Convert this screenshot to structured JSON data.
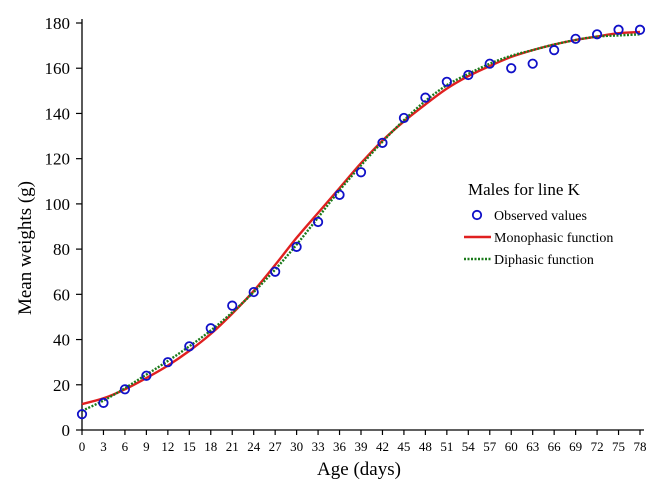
{
  "chart_data": {
    "type": "scatter",
    "xlabel": "Age (days)",
    "ylabel": "Mean weights (g)",
    "xlim": [
      0,
      78
    ],
    "ylim": [
      0,
      180
    ],
    "x_ticks": [
      0,
      3,
      6,
      9,
      12,
      15,
      18,
      21,
      24,
      27,
      30,
      33,
      36,
      39,
      42,
      45,
      48,
      51,
      54,
      57,
      60,
      63,
      66,
      69,
      72,
      75,
      78
    ],
    "y_ticks": [
      0,
      20,
      40,
      60,
      80,
      100,
      120,
      140,
      160,
      180
    ],
    "grid": false,
    "legend": {
      "title": "Males for line K",
      "placement": "center-right"
    },
    "series": [
      {
        "name": "Observed values",
        "kind": "markers",
        "color": "#1010c8",
        "x": [
          0,
          3,
          6,
          9,
          12,
          15,
          18,
          21,
          24,
          27,
          30,
          33,
          36,
          39,
          42,
          45,
          48,
          51,
          54,
          57,
          60,
          63,
          66,
          69,
          72,
          75,
          78
        ],
        "y": [
          7,
          12,
          18,
          24,
          30,
          37,
          45,
          55,
          61,
          70,
          81,
          92,
          104,
          114,
          127,
          138,
          147,
          154,
          157,
          162,
          160,
          162,
          168,
          173,
          175,
          177,
          177
        ]
      },
      {
        "name": "Monophasic function",
        "kind": "line",
        "color": "#e02020",
        "x": [
          0,
          3,
          6,
          9,
          12,
          15,
          18,
          21,
          24,
          27,
          30,
          33,
          36,
          39,
          42,
          45,
          48,
          51,
          54,
          57,
          60,
          63,
          66,
          69,
          72,
          75,
          78
        ],
        "y": [
          11.5,
          14,
          18,
          23,
          28.5,
          35,
          42.5,
          51.5,
          61.5,
          73,
          85,
          96,
          107,
          118,
          128,
          136.5,
          144,
          151,
          156.5,
          161,
          165,
          168,
          170.5,
          172.5,
          174,
          175.5,
          176
        ]
      },
      {
        "name": "Diphasic function",
        "kind": "dotted-line",
        "color": "#1a7a1a",
        "x": [
          0,
          3,
          6,
          9,
          12,
          15,
          18,
          21,
          24,
          27,
          30,
          33,
          36,
          39,
          42,
          45,
          48,
          51,
          54,
          57,
          60,
          63,
          66,
          69,
          72,
          75,
          78
        ],
        "y": [
          8.5,
          13,
          18.5,
          24.5,
          30.5,
          37,
          44,
          52,
          61,
          71,
          82,
          94,
          106,
          117,
          127.5,
          137,
          145.5,
          152.5,
          157.5,
          162,
          165.5,
          168,
          170.5,
          172.5,
          174,
          174.5,
          175
        ]
      }
    ]
  }
}
